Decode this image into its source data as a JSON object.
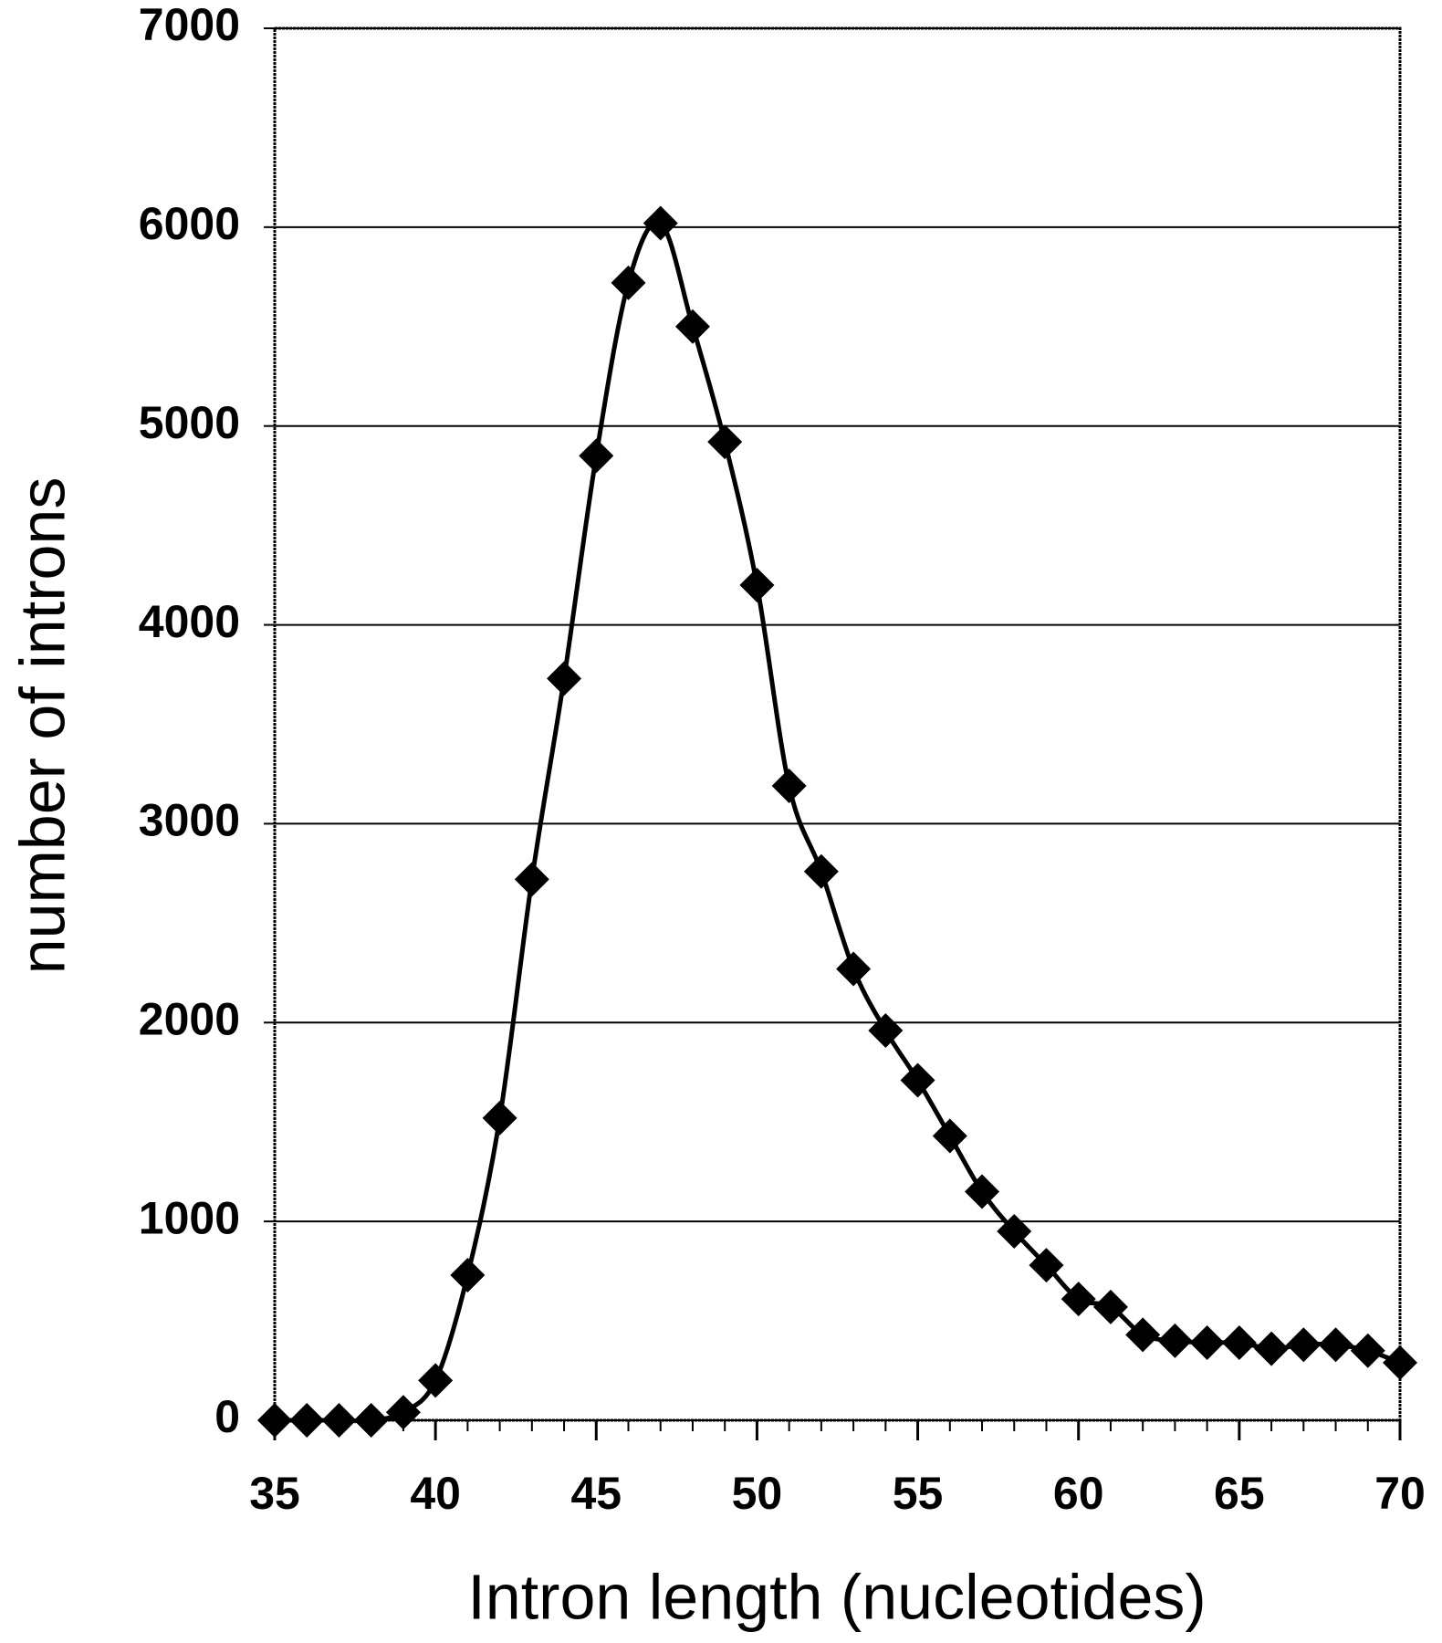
{
  "chart_data": {
    "type": "line",
    "xlabel": "Intron length (nucleotides)",
    "ylabel": "number of introns",
    "x": [
      35,
      36,
      37,
      38,
      39,
      40,
      41,
      42,
      43,
      44,
      45,
      46,
      47,
      48,
      49,
      50,
      51,
      52,
      53,
      54,
      55,
      56,
      57,
      58,
      59,
      60,
      61,
      62,
      63,
      64,
      65,
      66,
      67,
      68,
      69,
      70
    ],
    "values": [
      0,
      0,
      0,
      0,
      40,
      200,
      730,
      1520,
      2720,
      3730,
      4850,
      5720,
      6020,
      5500,
      4920,
      4200,
      3190,
      2760,
      2270,
      1960,
      1710,
      1430,
      1150,
      950,
      780,
      610,
      570,
      430,
      400,
      390,
      390,
      360,
      380,
      380,
      350,
      290
    ],
    "color": "#000000",
    "xlim": [
      35,
      70
    ],
    "xticks": [
      35,
      40,
      45,
      50,
      55,
      60,
      65,
      70
    ],
    "ylim": [
      0,
      7000
    ],
    "yticks": [
      0,
      1000,
      2000,
      3000,
      4000,
      5000,
      6000,
      7000
    ],
    "grid": true
  }
}
